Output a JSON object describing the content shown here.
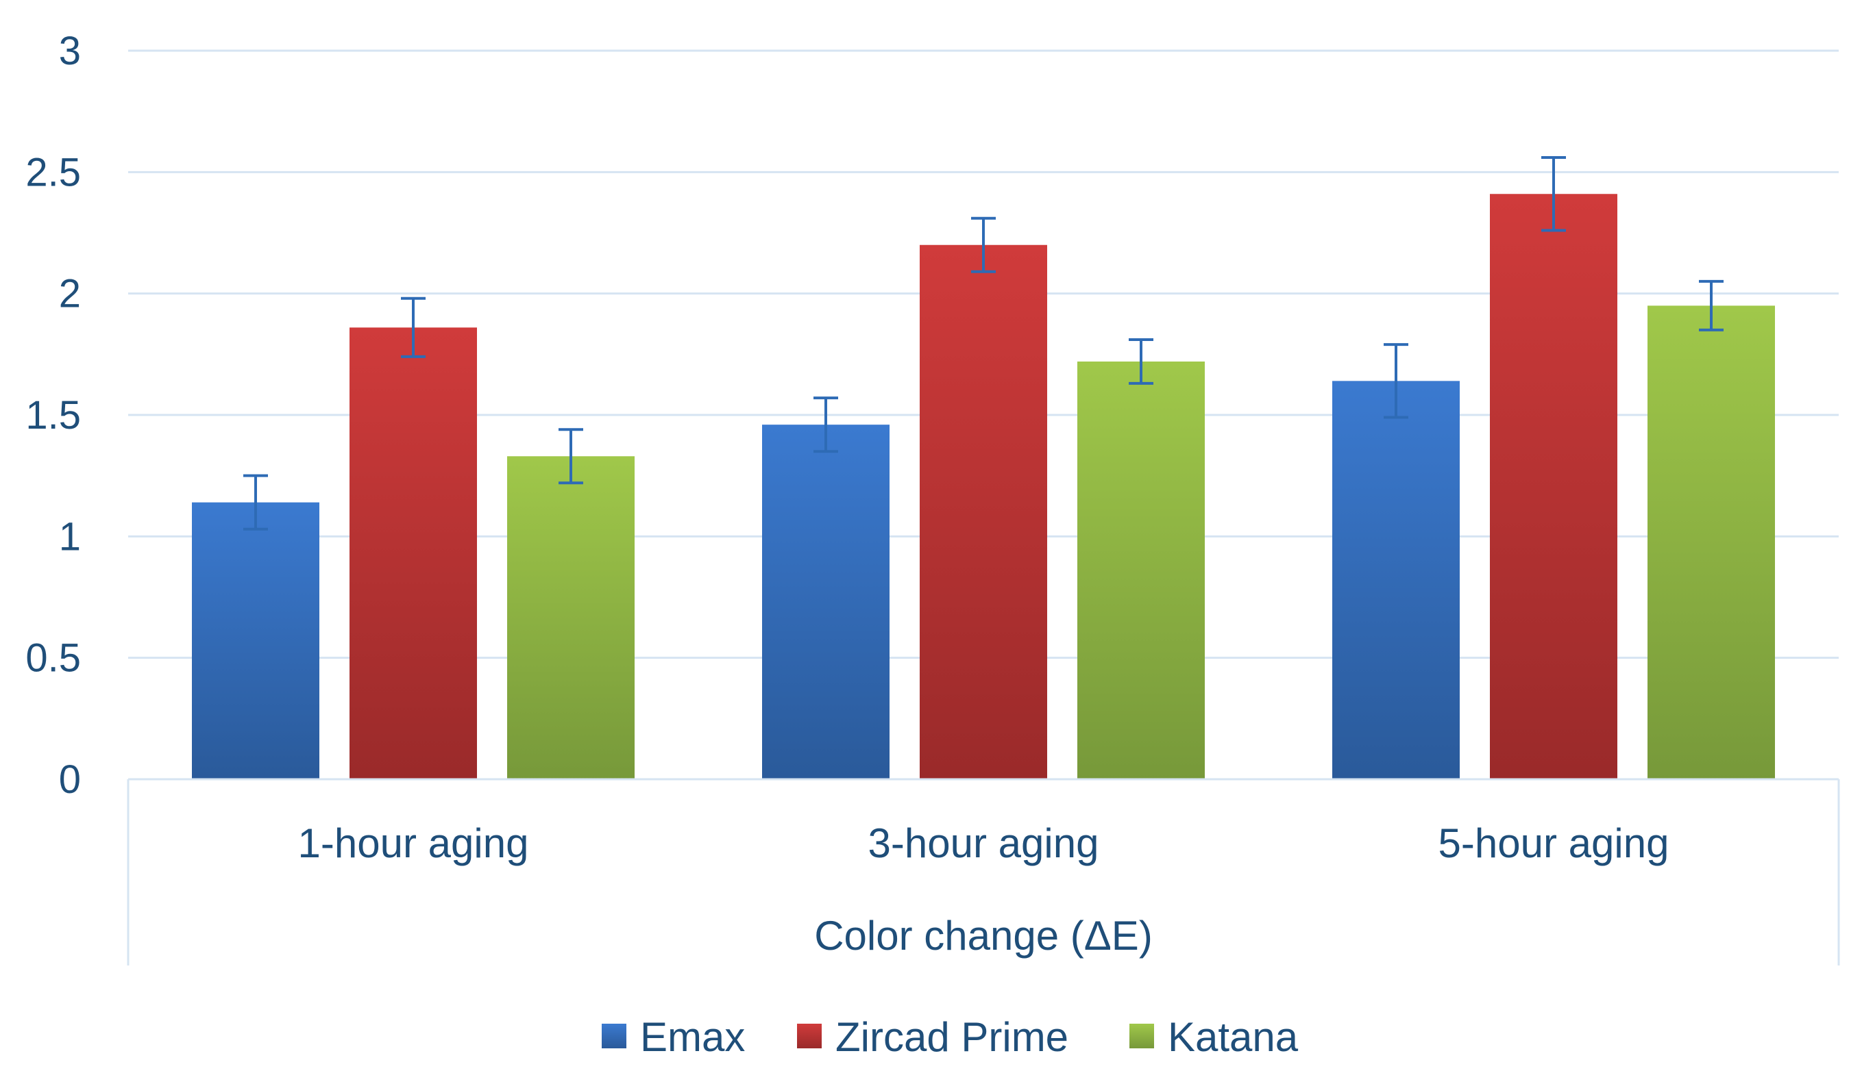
{
  "chart_data": {
    "type": "bar",
    "title": "",
    "xlabel": "Color change (ΔE)",
    "ylabel": "",
    "ylim": [
      0,
      3
    ],
    "yticks": [
      0,
      0.5,
      1,
      1.5,
      2,
      2.5,
      3
    ],
    "ytick_labels": [
      "0",
      "0.5",
      "1",
      "1.5",
      "2",
      "2.5",
      "3"
    ],
    "grid": true,
    "legend_position": "bottom-center",
    "categories": [
      "1-hour aging",
      "3-hour aging",
      "5-hour aging"
    ],
    "series": [
      {
        "name": "Emax",
        "color": "#3b7ad0",
        "color_dark": "#2a5a9a",
        "values": [
          1.14,
          1.46,
          1.64
        ],
        "errors": [
          0.11,
          0.11,
          0.15
        ]
      },
      {
        "name": "Zircad Prime",
        "color": "#d03b3b",
        "color_dark": "#9a2a2a",
        "values": [
          1.86,
          2.2,
          2.41
        ],
        "errors": [
          0.12,
          0.11,
          0.15
        ]
      },
      {
        "name": "Katana",
        "color": "#a0c84a",
        "color_dark": "#77993a",
        "values": [
          1.33,
          1.72,
          1.95
        ],
        "errors": [
          0.11,
          0.09,
          0.1
        ]
      }
    ],
    "error_bar_color": "#2e6bb5",
    "grid_color": "#d6e4f2",
    "text_color": "#1f4e79"
  }
}
